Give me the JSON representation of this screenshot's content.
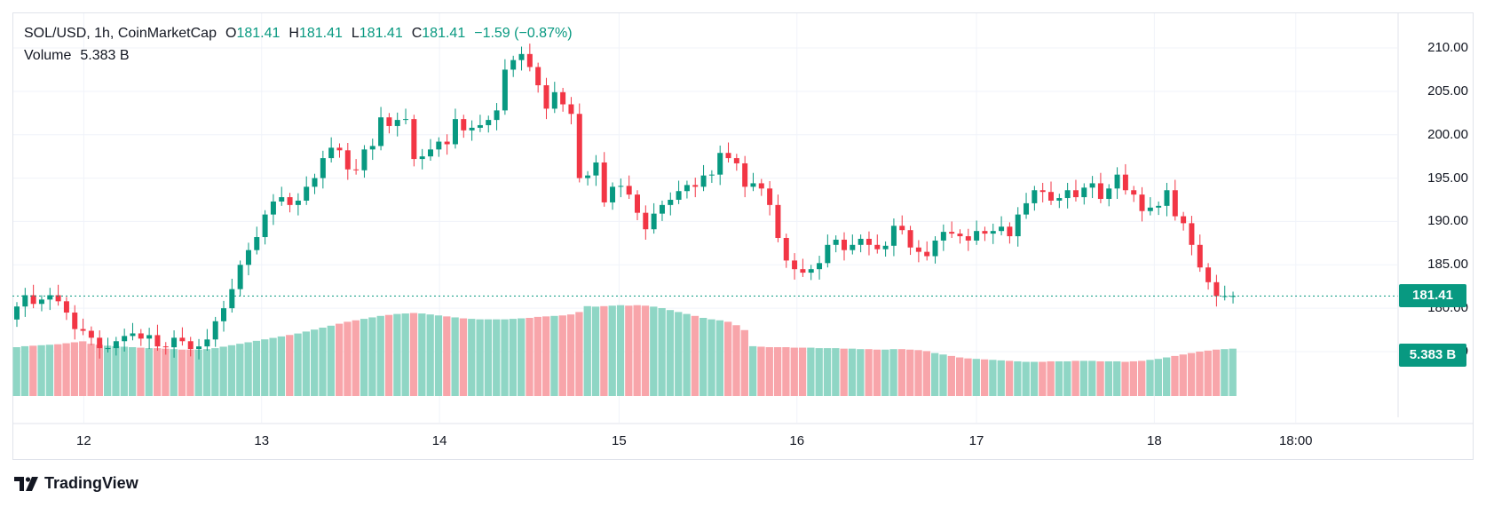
{
  "header": {
    "symbol": "SOL/USD, 1h, CoinMarketCap",
    "o_label": "O",
    "o_value": "181.41",
    "h_label": "H",
    "h_value": "181.41",
    "l_label": "L",
    "l_value": "181.41",
    "c_label": "C",
    "c_value": "181.41",
    "change": "−1.59 (−0.87%)",
    "volume_label": "Volume",
    "volume_value": "5.383 B"
  },
  "axes": {
    "y_ticks": [
      "210.00",
      "205.00",
      "200.00",
      "195.00",
      "190.00",
      "185.00",
      "180.00",
      "175.00"
    ],
    "x_ticks": [
      "12",
      "13",
      "14",
      "15",
      "16",
      "17",
      "18",
      "18:00"
    ],
    "current_price_label": "181.41",
    "current_volume_label": "5.383 B"
  },
  "brand": {
    "name": "TradingView",
    "icon": "tradingview-logo-icon"
  },
  "colors": {
    "up": "#089981",
    "down": "#f23645",
    "volume_up": "#8fd6c5",
    "volume_down": "#f8a5aa",
    "grid": "#f0f3fa"
  },
  "chart_data": {
    "type": "candlestick",
    "title": "SOL/USD, 1h, CoinMarketCap",
    "timeframe": "1h",
    "ylim": [
      174,
      212
    ],
    "grid": true,
    "last_price": 181.41,
    "last_volume": "5.383 B",
    "x_day_ticks": [
      "12",
      "13",
      "14",
      "15",
      "16",
      "17",
      "18",
      "18:00"
    ],
    "close": [
      180.2,
      181.5,
      180.5,
      181.0,
      181.5,
      180.8,
      179.5,
      177.6,
      177.4,
      176.6,
      175.4,
      175.4,
      176.2,
      176.8,
      177.1,
      176.5,
      176.9,
      175.6,
      175.5,
      176.6,
      176.2,
      175.3,
      175.6,
      176.4,
      178.5,
      180.0,
      182.2,
      185.0,
      186.7,
      188.2,
      190.8,
      192.3,
      192.8,
      191.9,
      192.4,
      194.0,
      195.0,
      197.3,
      198.5,
      198.2,
      196.0,
      195.9,
      198.3,
      198.7,
      202.0,
      201.0,
      201.7,
      201.8,
      197.2,
      197.5,
      198.3,
      199.2,
      198.9,
      201.8,
      200.5,
      200.8,
      201.1,
      201.7,
      202.8,
      207.5,
      208.6,
      209.3,
      207.8,
      205.7,
      203.0,
      204.9,
      203.5,
      202.4,
      195.0,
      195.3,
      196.8,
      192.2,
      194.0,
      194.1,
      193.1,
      191.0,
      189.1,
      190.9,
      191.9,
      192.5,
      193.5,
      194.2,
      194.0,
      195.3,
      195.4,
      197.9,
      197.3,
      196.7,
      194.0,
      194.4,
      193.8,
      191.9,
      188.1,
      185.5,
      184.5,
      184.1,
      184.5,
      185.2,
      187.3,
      187.9,
      186.7,
      187.3,
      188.0,
      187.3,
      186.8,
      187.2,
      189.5,
      189.0,
      187.0,
      186.5,
      186.0,
      187.8,
      188.8,
      188.6,
      188.3,
      187.8,
      188.9,
      188.6,
      188.9,
      189.4,
      188.3,
      190.8,
      192.1,
      193.6,
      193.4,
      192.4,
      192.7,
      193.6,
      192.8,
      193.9,
      194.4,
      192.6,
      193.8,
      195.4,
      193.6,
      193.1,
      191.2,
      191.6,
      191.8,
      193.6,
      190.6,
      189.8,
      187.3,
      184.7,
      183.0,
      181.4,
      181.4,
      181.41
    ],
    "volume": [
      100,
      102,
      103,
      104,
      105,
      106,
      108,
      110,
      112,
      107,
      105,
      103,
      102,
      101,
      100,
      99,
      98,
      98,
      97,
      96,
      95,
      95,
      95,
      96,
      98,
      101,
      104,
      107,
      110,
      113,
      116,
      119,
      122,
      125,
      128,
      132,
      136,
      140,
      144,
      148,
      152,
      155,
      158,
      161,
      164,
      166,
      168,
      169,
      170,
      169,
      167,
      165,
      163,
      161,
      159,
      158,
      157,
      157,
      157,
      157,
      158,
      159,
      160,
      162,
      163,
      164,
      165,
      167,
      172,
      184,
      183,
      184,
      185,
      186,
      185,
      186,
      185,
      183,
      180,
      176,
      172,
      168,
      164,
      160,
      157,
      155,
      152,
      145,
      135,
      102,
      101,
      100,
      100,
      100,
      99,
      99,
      99,
      98,
      98,
      98,
      97,
      97,
      96,
      96,
      95,
      95,
      96,
      96,
      95,
      94,
      92,
      88,
      85,
      82,
      79,
      77,
      76,
      75,
      74,
      73,
      72,
      71,
      70,
      70,
      70,
      71,
      71,
      71,
      72,
      72,
      72,
      71,
      71,
      71,
      70,
      71,
      72,
      74,
      76,
      79,
      82,
      85,
      88,
      91,
      93,
      95,
      96,
      97
    ]
  }
}
